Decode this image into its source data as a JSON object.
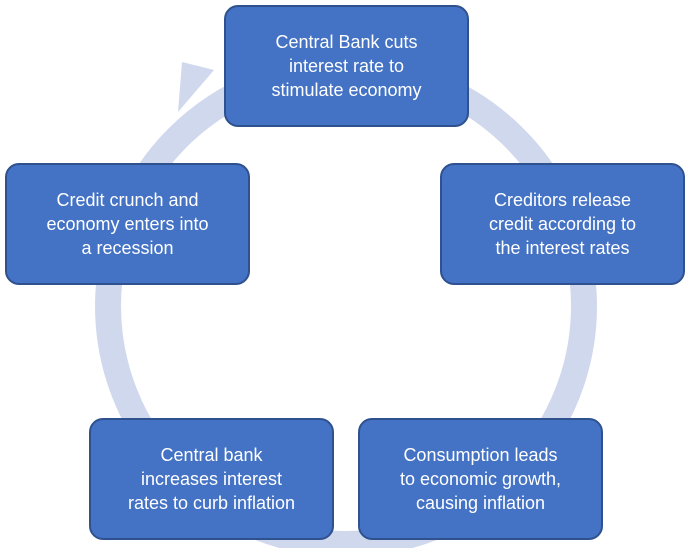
{
  "diagram": {
    "ring_color": "#d0d8ee",
    "node_fill": "#4472c4",
    "node_border": "#2f528f",
    "nodes": [
      {
        "id": "top",
        "text": "Central Bank cuts\ninterest rate to\nstimulate economy"
      },
      {
        "id": "right",
        "text": "Creditors release\ncredit according to\nthe interest rates"
      },
      {
        "id": "bottom-right",
        "text": "Consumption leads\nto economic growth,\ncausing inflation"
      },
      {
        "id": "bottom-left",
        "text": "Central bank\nincreases interest\nrates to curb inflation"
      },
      {
        "id": "left",
        "text": "Credit crunch and\neconomy enters into\na recession"
      }
    ]
  }
}
